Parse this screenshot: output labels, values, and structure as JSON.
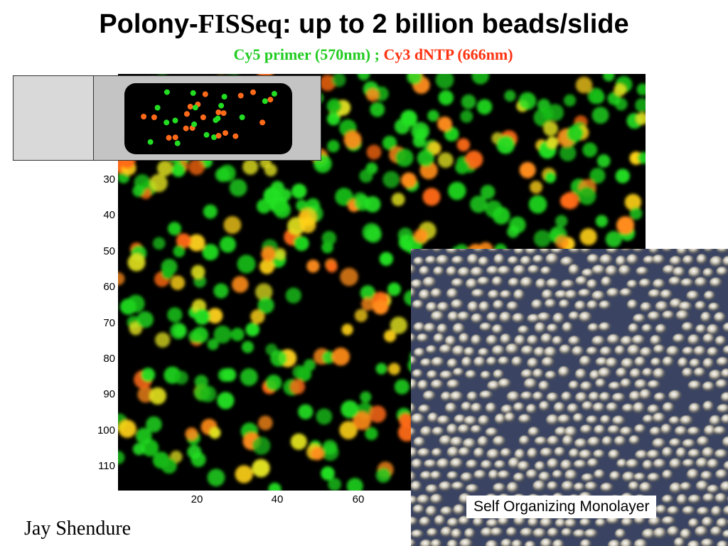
{
  "title": {
    "part1": "Polony-",
    "part2": "FISSeq",
    "part3": ":  up to 2 billion beads/slide"
  },
  "subtitle": {
    "green": "Cy5 primer (570nm) ; ",
    "red": "Cy3 dNTP (666nm)"
  },
  "plot": {
    "y_ticks": [
      "30",
      "40",
      "50",
      "60",
      "70",
      "80",
      "90",
      "100",
      "110"
    ],
    "x_ticks": [
      "20",
      "40",
      "60"
    ]
  },
  "slide_diagram": {
    "bead_colors": {
      "green": "#22dd22",
      "orange": "#ff6a1a"
    }
  },
  "sem": {
    "caption": "Self Organizing Monolayer"
  },
  "author": "Jay Shendure"
}
